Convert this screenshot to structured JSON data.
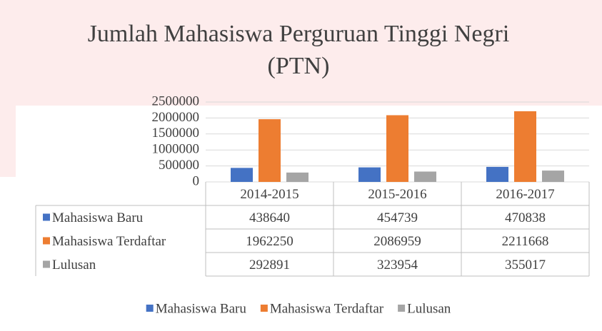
{
  "chart_data": {
    "type": "bar",
    "title": "Jumlah Mahasiswa Perguruan Tinggi Negri (PTN)",
    "categories": [
      "2014-2015",
      "2015-2016",
      "2016-2017"
    ],
    "series": [
      {
        "name": "Mahasiswa Baru",
        "color": "#4472c4",
        "values": [
          438640,
          454739,
          470838
        ]
      },
      {
        "name": "Mahasiswa Terdaftar",
        "color": "#ed7d31",
        "values": [
          1962250,
          2086959,
          2211668
        ]
      },
      {
        "name": "Lulusan",
        "color": "#a5a5a5",
        "values": [
          292891,
          323954,
          355017
        ]
      }
    ],
    "ylim": [
      0,
      2500000
    ],
    "yticks": [
      0,
      500000,
      1000000,
      1500000,
      2000000,
      2500000
    ],
    "grid": true,
    "legend": "bottom"
  }
}
